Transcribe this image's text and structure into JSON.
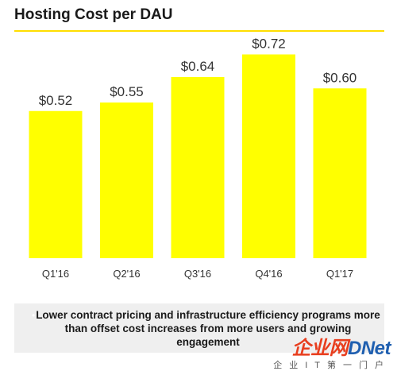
{
  "title": "Hosting Cost per DAU",
  "chart_data": {
    "type": "bar",
    "categories": [
      "Q1'16",
      "Q2'16",
      "Q3'16",
      "Q4'16",
      "Q1'17"
    ],
    "values": [
      0.52,
      0.55,
      0.64,
      0.72,
      0.6
    ],
    "value_labels": [
      "$0.52",
      "$0.55",
      "$0.64",
      "$0.72",
      "$0.60"
    ],
    "title": "Hosting Cost per DAU",
    "ylim": [
      0,
      0.8
    ],
    "grid": false,
    "bar_color": "#ffff00"
  },
  "note": {
    "bullet": "•",
    "text": "Lower contract pricing and infrastructure efficiency programs more than offset cost increases from more users and growing engagement"
  },
  "watermark": {
    "logo_prefix": "企业网",
    "logo_brand": "D",
    "logo_suffix": "Net",
    "subtitle": "企业IT第一门户"
  },
  "colors": {
    "accent": "#ffde00",
    "bar": "#ffff00",
    "note_background": "#efefef"
  }
}
